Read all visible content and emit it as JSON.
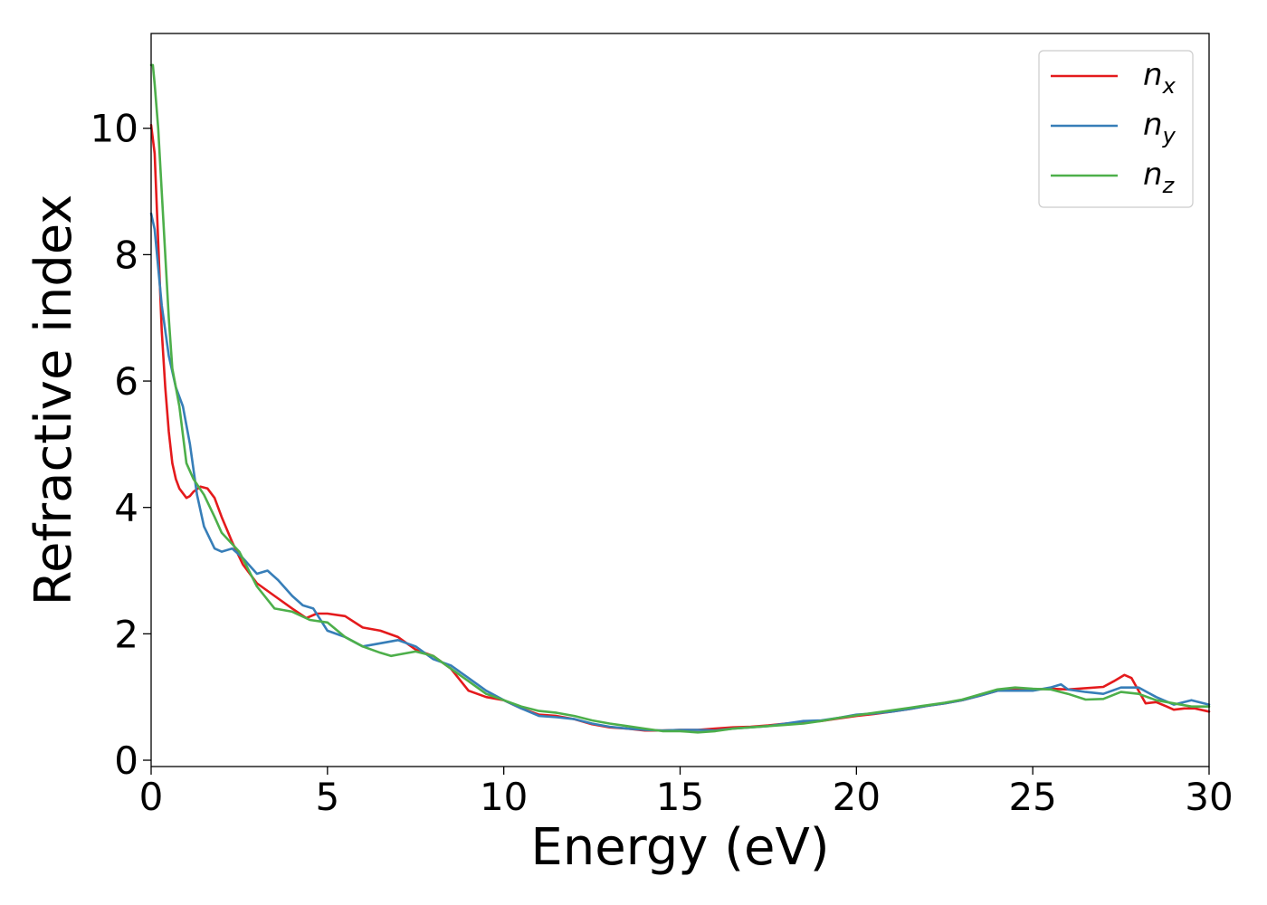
{
  "chart_data": {
    "type": "line",
    "xlabel": "Energy (eV)",
    "ylabel": "Refractive index",
    "xlim": [
      0,
      30
    ],
    "ylim": [
      -0.1,
      11.5
    ],
    "xticks": [
      "0",
      "5",
      "10",
      "15",
      "20",
      "25",
      "30"
    ],
    "yticks": [
      "0",
      "2",
      "4",
      "6",
      "8",
      "10"
    ],
    "grid": false,
    "legend_position": "top-right",
    "series": [
      {
        "name": "n_x",
        "legend_main": "n",
        "legend_sub": "x",
        "color": "#e41a1c",
        "x": [
          0,
          0.1,
          0.2,
          0.3,
          0.4,
          0.5,
          0.6,
          0.7,
          0.8,
          1.0,
          1.1,
          1.2,
          1.4,
          1.6,
          1.8,
          2.0,
          2.3,
          2.6,
          3.0,
          3.5,
          4.0,
          4.4,
          4.7,
          5.0,
          5.5,
          6.0,
          6.5,
          7.0,
          7.5,
          8.0,
          8.5,
          9.0,
          9.5,
          10.0,
          10.5,
          11.0,
          11.5,
          12.0,
          12.5,
          13.0,
          13.5,
          14.0,
          14.5,
          15.0,
          15.5,
          16.0,
          16.5,
          17.0,
          17.5,
          18.0,
          18.5,
          19.0,
          19.5,
          20.0,
          20.5,
          21.0,
          21.5,
          22.0,
          22.5,
          23.0,
          23.5,
          24.0,
          24.5,
          25.0,
          25.5,
          26.0,
          26.5,
          27.0,
          27.3,
          27.6,
          27.8,
          28.0,
          28.2,
          28.5,
          28.8,
          29.0,
          29.3,
          29.6,
          30.0
        ],
        "y": [
          10.05,
          9.6,
          8.2,
          6.8,
          5.9,
          5.2,
          4.7,
          4.45,
          4.3,
          4.15,
          4.18,
          4.25,
          4.33,
          4.3,
          4.15,
          3.85,
          3.45,
          3.1,
          2.8,
          2.6,
          2.4,
          2.25,
          2.32,
          2.32,
          2.28,
          2.1,
          2.05,
          1.95,
          1.75,
          1.65,
          1.45,
          1.1,
          1.0,
          0.95,
          0.82,
          0.72,
          0.7,
          0.65,
          0.57,
          0.52,
          0.5,
          0.47,
          0.47,
          0.48,
          0.48,
          0.5,
          0.52,
          0.53,
          0.55,
          0.58,
          0.6,
          0.62,
          0.66,
          0.7,
          0.73,
          0.77,
          0.81,
          0.86,
          0.9,
          0.95,
          1.02,
          1.1,
          1.12,
          1.12,
          1.13,
          1.12,
          1.14,
          1.16,
          1.25,
          1.35,
          1.3,
          1.1,
          0.9,
          0.92,
          0.85,
          0.8,
          0.82,
          0.82,
          0.77
        ]
      },
      {
        "name": "n_y",
        "legend_main": "n",
        "legend_sub": "y",
        "color": "#377eb8",
        "x": [
          0,
          0.1,
          0.2,
          0.3,
          0.5,
          0.7,
          0.9,
          1.1,
          1.3,
          1.5,
          1.8,
          2.0,
          2.3,
          2.6,
          3.0,
          3.3,
          3.6,
          4.0,
          4.3,
          4.6,
          5.0,
          5.5,
          6.0,
          6.5,
          7.0,
          7.5,
          8.0,
          8.5,
          9.0,
          9.5,
          10.0,
          10.5,
          11.0,
          11.5,
          12.0,
          12.5,
          13.0,
          13.5,
          14.0,
          14.5,
          15.0,
          15.5,
          16.0,
          16.5,
          17.0,
          17.5,
          18.0,
          18.5,
          19.0,
          19.5,
          20.0,
          20.5,
          21.0,
          21.5,
          22.0,
          22.5,
          23.0,
          23.5,
          24.0,
          24.5,
          25.0,
          25.5,
          25.8,
          26.0,
          26.5,
          27.0,
          27.5,
          28.0,
          28.5,
          29.0,
          29.5,
          30.0
        ],
        "y": [
          8.65,
          8.4,
          7.8,
          7.2,
          6.4,
          5.9,
          5.6,
          5.0,
          4.2,
          3.7,
          3.35,
          3.3,
          3.35,
          3.2,
          2.95,
          3.0,
          2.85,
          2.6,
          2.45,
          2.4,
          2.05,
          1.95,
          1.8,
          1.85,
          1.9,
          1.8,
          1.6,
          1.5,
          1.3,
          1.1,
          0.95,
          0.82,
          0.7,
          0.68,
          0.65,
          0.58,
          0.53,
          0.5,
          0.48,
          0.47,
          0.48,
          0.48,
          0.47,
          0.5,
          0.52,
          0.54,
          0.58,
          0.62,
          0.63,
          0.67,
          0.72,
          0.74,
          0.77,
          0.81,
          0.86,
          0.9,
          0.95,
          1.02,
          1.1,
          1.1,
          1.1,
          1.15,
          1.2,
          1.12,
          1.08,
          1.05,
          1.15,
          1.15,
          1.0,
          0.88,
          0.95,
          0.88
        ]
      },
      {
        "name": "n_z",
        "legend_main": "n",
        "legend_sub": "z",
        "color": "#4daf4a",
        "x": [
          0,
          0.05,
          0.1,
          0.2,
          0.3,
          0.4,
          0.5,
          0.6,
          0.7,
          0.8,
          1.0,
          1.2,
          1.5,
          1.8,
          2.0,
          2.5,
          3.0,
          3.5,
          4.0,
          4.5,
          5.0,
          5.5,
          6.0,
          6.5,
          6.8,
          7.0,
          7.5,
          8.0,
          8.5,
          9.0,
          9.5,
          10.0,
          10.5,
          11.0,
          11.5,
          12.0,
          12.5,
          13.0,
          13.5,
          14.0,
          14.5,
          15.0,
          15.5,
          16.0,
          16.5,
          17.0,
          17.5,
          18.0,
          18.5,
          19.0,
          19.5,
          20.0,
          20.5,
          21.0,
          21.5,
          22.0,
          22.5,
          23.0,
          23.5,
          24.0,
          24.5,
          25.0,
          25.5,
          26.0,
          26.5,
          27.0,
          27.5,
          28.0,
          28.5,
          29.0,
          29.5,
          30.0
        ],
        "y": [
          11.0,
          11.0,
          10.7,
          10.0,
          9.0,
          8.0,
          7.0,
          6.2,
          5.9,
          5.6,
          4.7,
          4.45,
          4.2,
          3.85,
          3.6,
          3.3,
          2.75,
          2.4,
          2.35,
          2.22,
          2.18,
          1.95,
          1.8,
          1.7,
          1.65,
          1.67,
          1.72,
          1.65,
          1.45,
          1.25,
          1.05,
          0.95,
          0.85,
          0.78,
          0.75,
          0.7,
          0.63,
          0.58,
          0.54,
          0.5,
          0.46,
          0.46,
          0.44,
          0.46,
          0.5,
          0.52,
          0.54,
          0.56,
          0.58,
          0.62,
          0.67,
          0.71,
          0.75,
          0.79,
          0.83,
          0.87,
          0.91,
          0.96,
          1.04,
          1.12,
          1.15,
          1.13,
          1.12,
          1.05,
          0.96,
          0.97,
          1.08,
          1.05,
          0.95,
          0.9,
          0.85,
          0.85
        ]
      }
    ]
  }
}
